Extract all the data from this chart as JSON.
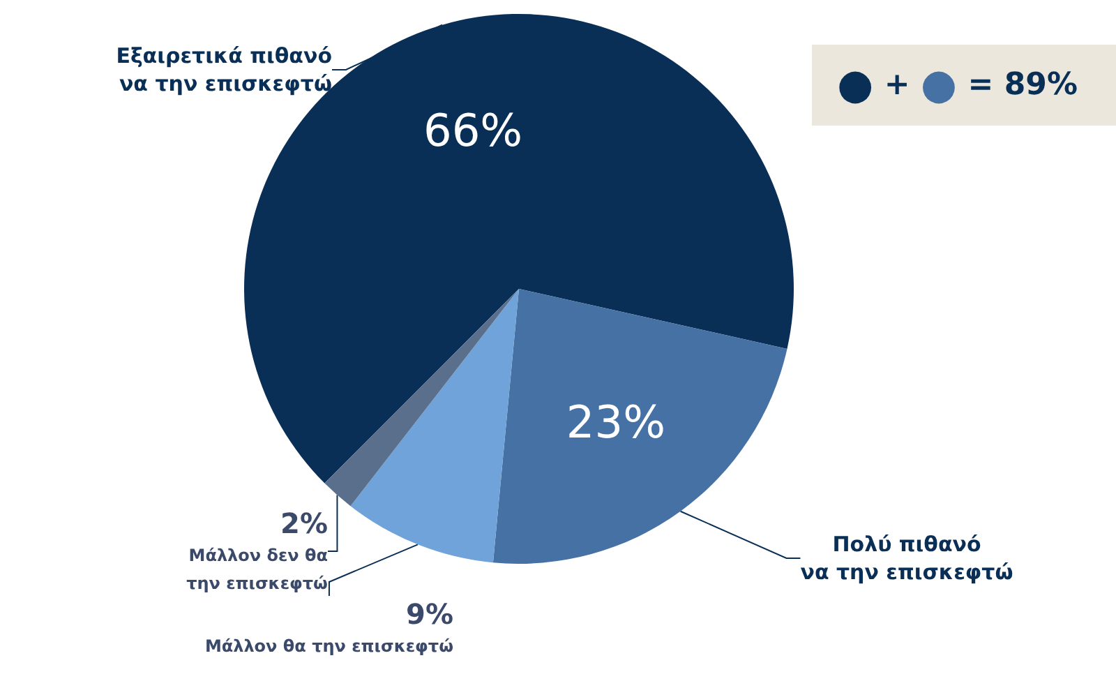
{
  "chart_data": {
    "type": "pie",
    "categories": [
      "Εξαιρετικά πιθανό\nνα την επισκεφτώ",
      "Πολύ πιθανό\nνα την επισκεφτώ",
      "Μάλλον θα την επισκεφτώ",
      "Μάλλον δεν θα\nτην επισκεφτώ"
    ],
    "values": [
      66,
      23,
      9,
      2
    ],
    "colors": [
      "#0a2f57",
      "#4571a4",
      "#6fa3d9",
      "#5a6f8c"
    ],
    "value_labels": [
      "66%",
      "23%",
      "9%",
      "2%"
    ],
    "annotations": [
      "● + ● = 89%"
    ]
  }
}
